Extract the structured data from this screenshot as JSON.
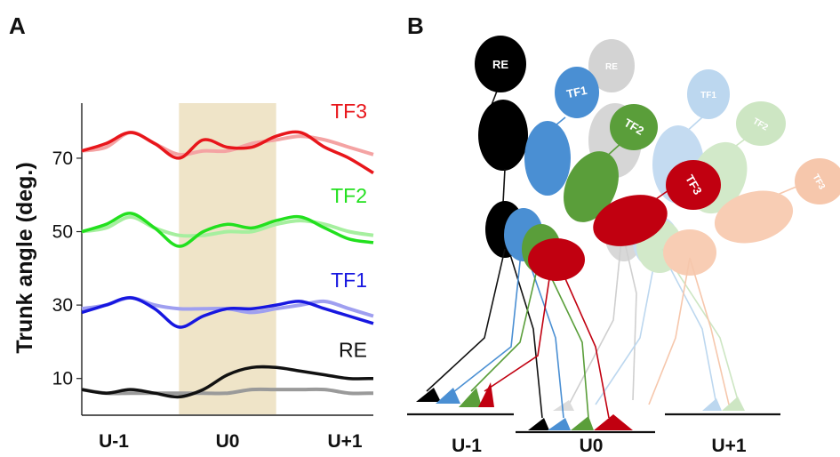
{
  "panels": {
    "left_letter": "A",
    "right_letter": "B"
  },
  "chart_data": {
    "type": "line",
    "title": "",
    "ylabel": "Trunk angle (deg.)",
    "xlabel": "",
    "categories": [
      "U-1",
      "U0",
      "U+1"
    ],
    "yticks": [
      10,
      30,
      50,
      70
    ],
    "ylim": [
      0,
      85
    ],
    "x": [
      0,
      1,
      2,
      3,
      4,
      5,
      6,
      7,
      8,
      9,
      10,
      11,
      12
    ],
    "highlight_band": {
      "label_category": "U0",
      "x_from": 4,
      "x_to": 8,
      "color": "#efe4c8"
    },
    "grid": false,
    "series": [
      {
        "name": "TF3",
        "color": "#e8161b",
        "light_color": "#f4a3a3",
        "values": [
          72,
          74,
          77,
          74,
          70,
          75,
          73,
          73,
          76,
          77,
          73,
          70,
          66
        ],
        "reference": [
          72,
          73,
          77,
          74,
          71,
          72,
          72,
          74,
          75,
          76,
          75,
          73,
          71
        ]
      },
      {
        "name": "TF2",
        "color": "#22e01e",
        "light_color": "#a6ef9f",
        "values": [
          50,
          52,
          55,
          51,
          46,
          50,
          52,
          51,
          53,
          54,
          51,
          48,
          47
        ],
        "reference": [
          50,
          51,
          54,
          51,
          49,
          49,
          50,
          50,
          52,
          53,
          52,
          50,
          49
        ]
      },
      {
        "name": "TF1",
        "color": "#1717e0",
        "light_color": "#9f9ff0",
        "values": [
          28,
          30,
          32,
          29,
          24,
          27,
          29,
          29,
          30,
          31,
          29,
          27,
          25
        ],
        "reference": [
          29,
          30,
          32,
          30,
          29,
          29,
          29,
          28,
          29,
          30,
          31,
          29,
          27
        ]
      },
      {
        "name": "RE",
        "color": "#111111",
        "light_color": "#9a9a9a",
        "values": [
          7,
          6,
          7,
          6,
          5,
          7,
          11,
          13,
          13,
          12,
          11,
          10,
          10
        ],
        "reference": [
          7,
          6,
          6,
          6,
          6,
          6,
          6,
          7,
          7,
          7,
          7,
          6,
          6
        ]
      }
    ]
  },
  "diagram": {
    "ground_labels": [
      "U-1",
      "U0",
      "U+1"
    ],
    "heads": [
      {
        "label": "RE",
        "color": "#000000"
      },
      {
        "label": "RE",
        "color": "#d3d3d3"
      },
      {
        "label": "TF1",
        "color": "#4a8fd3"
      },
      {
        "label": "TF1",
        "color": "#bcd7ef"
      },
      {
        "label": "TF2",
        "color": "#5a9e3a"
      },
      {
        "label": "TF2",
        "color": "#cde6c3"
      },
      {
        "label": "TF3",
        "color": "#c10010"
      },
      {
        "label": "TF3",
        "color": "#f6c7ac"
      }
    ]
  }
}
